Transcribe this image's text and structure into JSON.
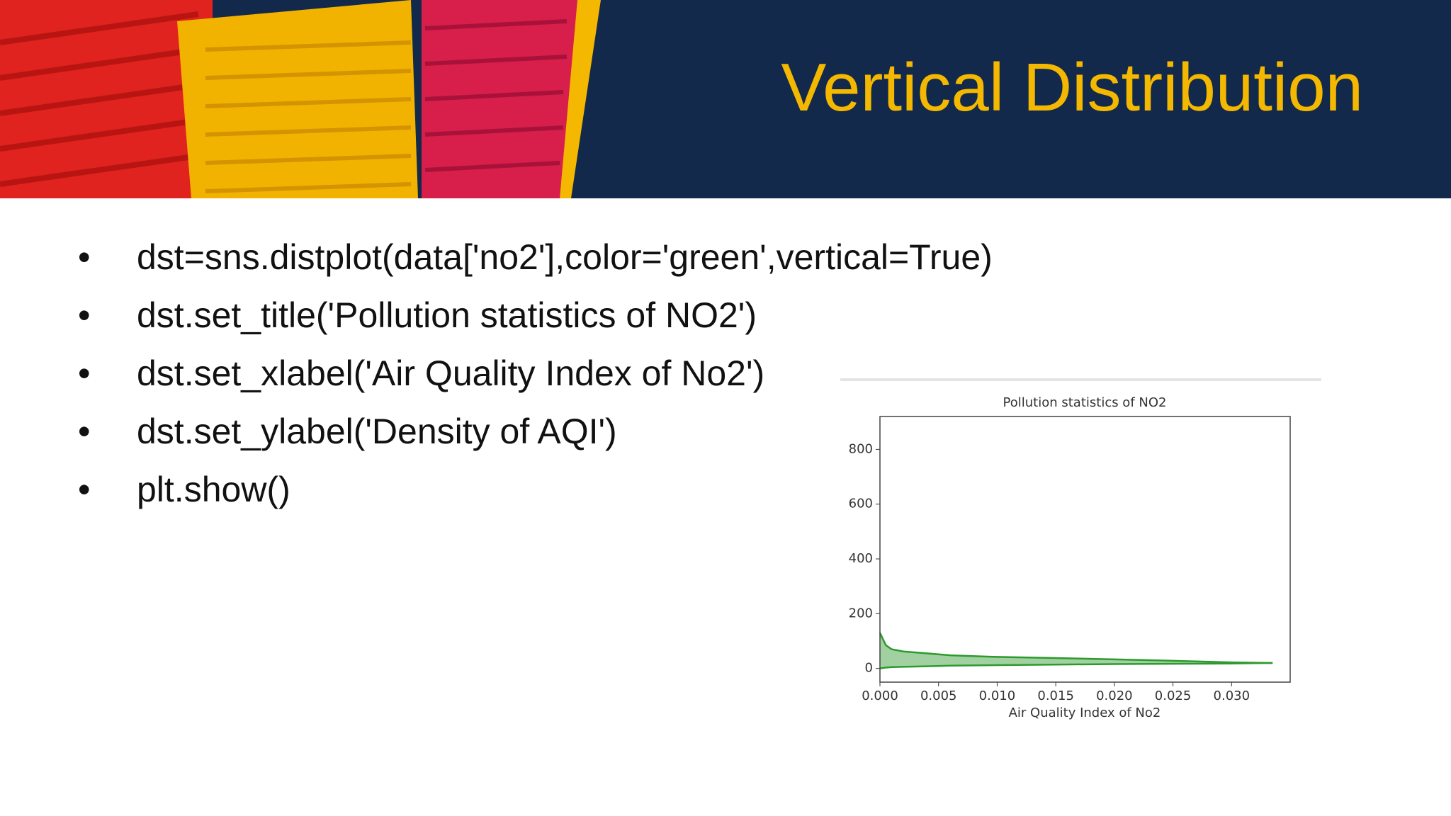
{
  "header": {
    "title": "Vertical Distribution"
  },
  "bullets": [
    "dst=sns.distplot(data['no2'],color='green',vertical=True)",
    "dst.set_title('Pollution statistics of NO2')",
    "dst.set_xlabel('Air Quality Index of No2')",
    "dst.set_ylabel('Density of AQI')",
    "plt.show()"
  ],
  "chart_data": {
    "type": "area",
    "title": "Pollution statistics of NO2",
    "xlabel": "Air Quality Index of No2",
    "color": "#2e9a2e",
    "x": [
      0,
      0.0005,
      0.001,
      0.002,
      0.004,
      0.006,
      0.01,
      0.015,
      0.02,
      0.025,
      0.03,
      0.0335
    ],
    "upper": [
      130,
      85,
      70,
      62,
      55,
      48,
      42,
      38,
      33,
      28,
      22,
      20
    ],
    "lower": [
      0,
      3,
      5,
      6,
      8,
      10,
      12,
      14,
      16,
      17,
      18,
      20
    ],
    "xlim": [
      0,
      0.035
    ],
    "ylim": [
      -50,
      920
    ],
    "xticks": [
      {
        "value": 0,
        "label": "0.000"
      },
      0.005,
      {
        "value": 0.01,
        "label": "0.010"
      },
      0.015,
      {
        "value": 0.02,
        "label": "0.020"
      },
      0.025,
      {
        "value": 0.03,
        "label": "0.030"
      }
    ],
    "yticks": [
      0,
      200,
      400,
      600,
      800
    ]
  }
}
